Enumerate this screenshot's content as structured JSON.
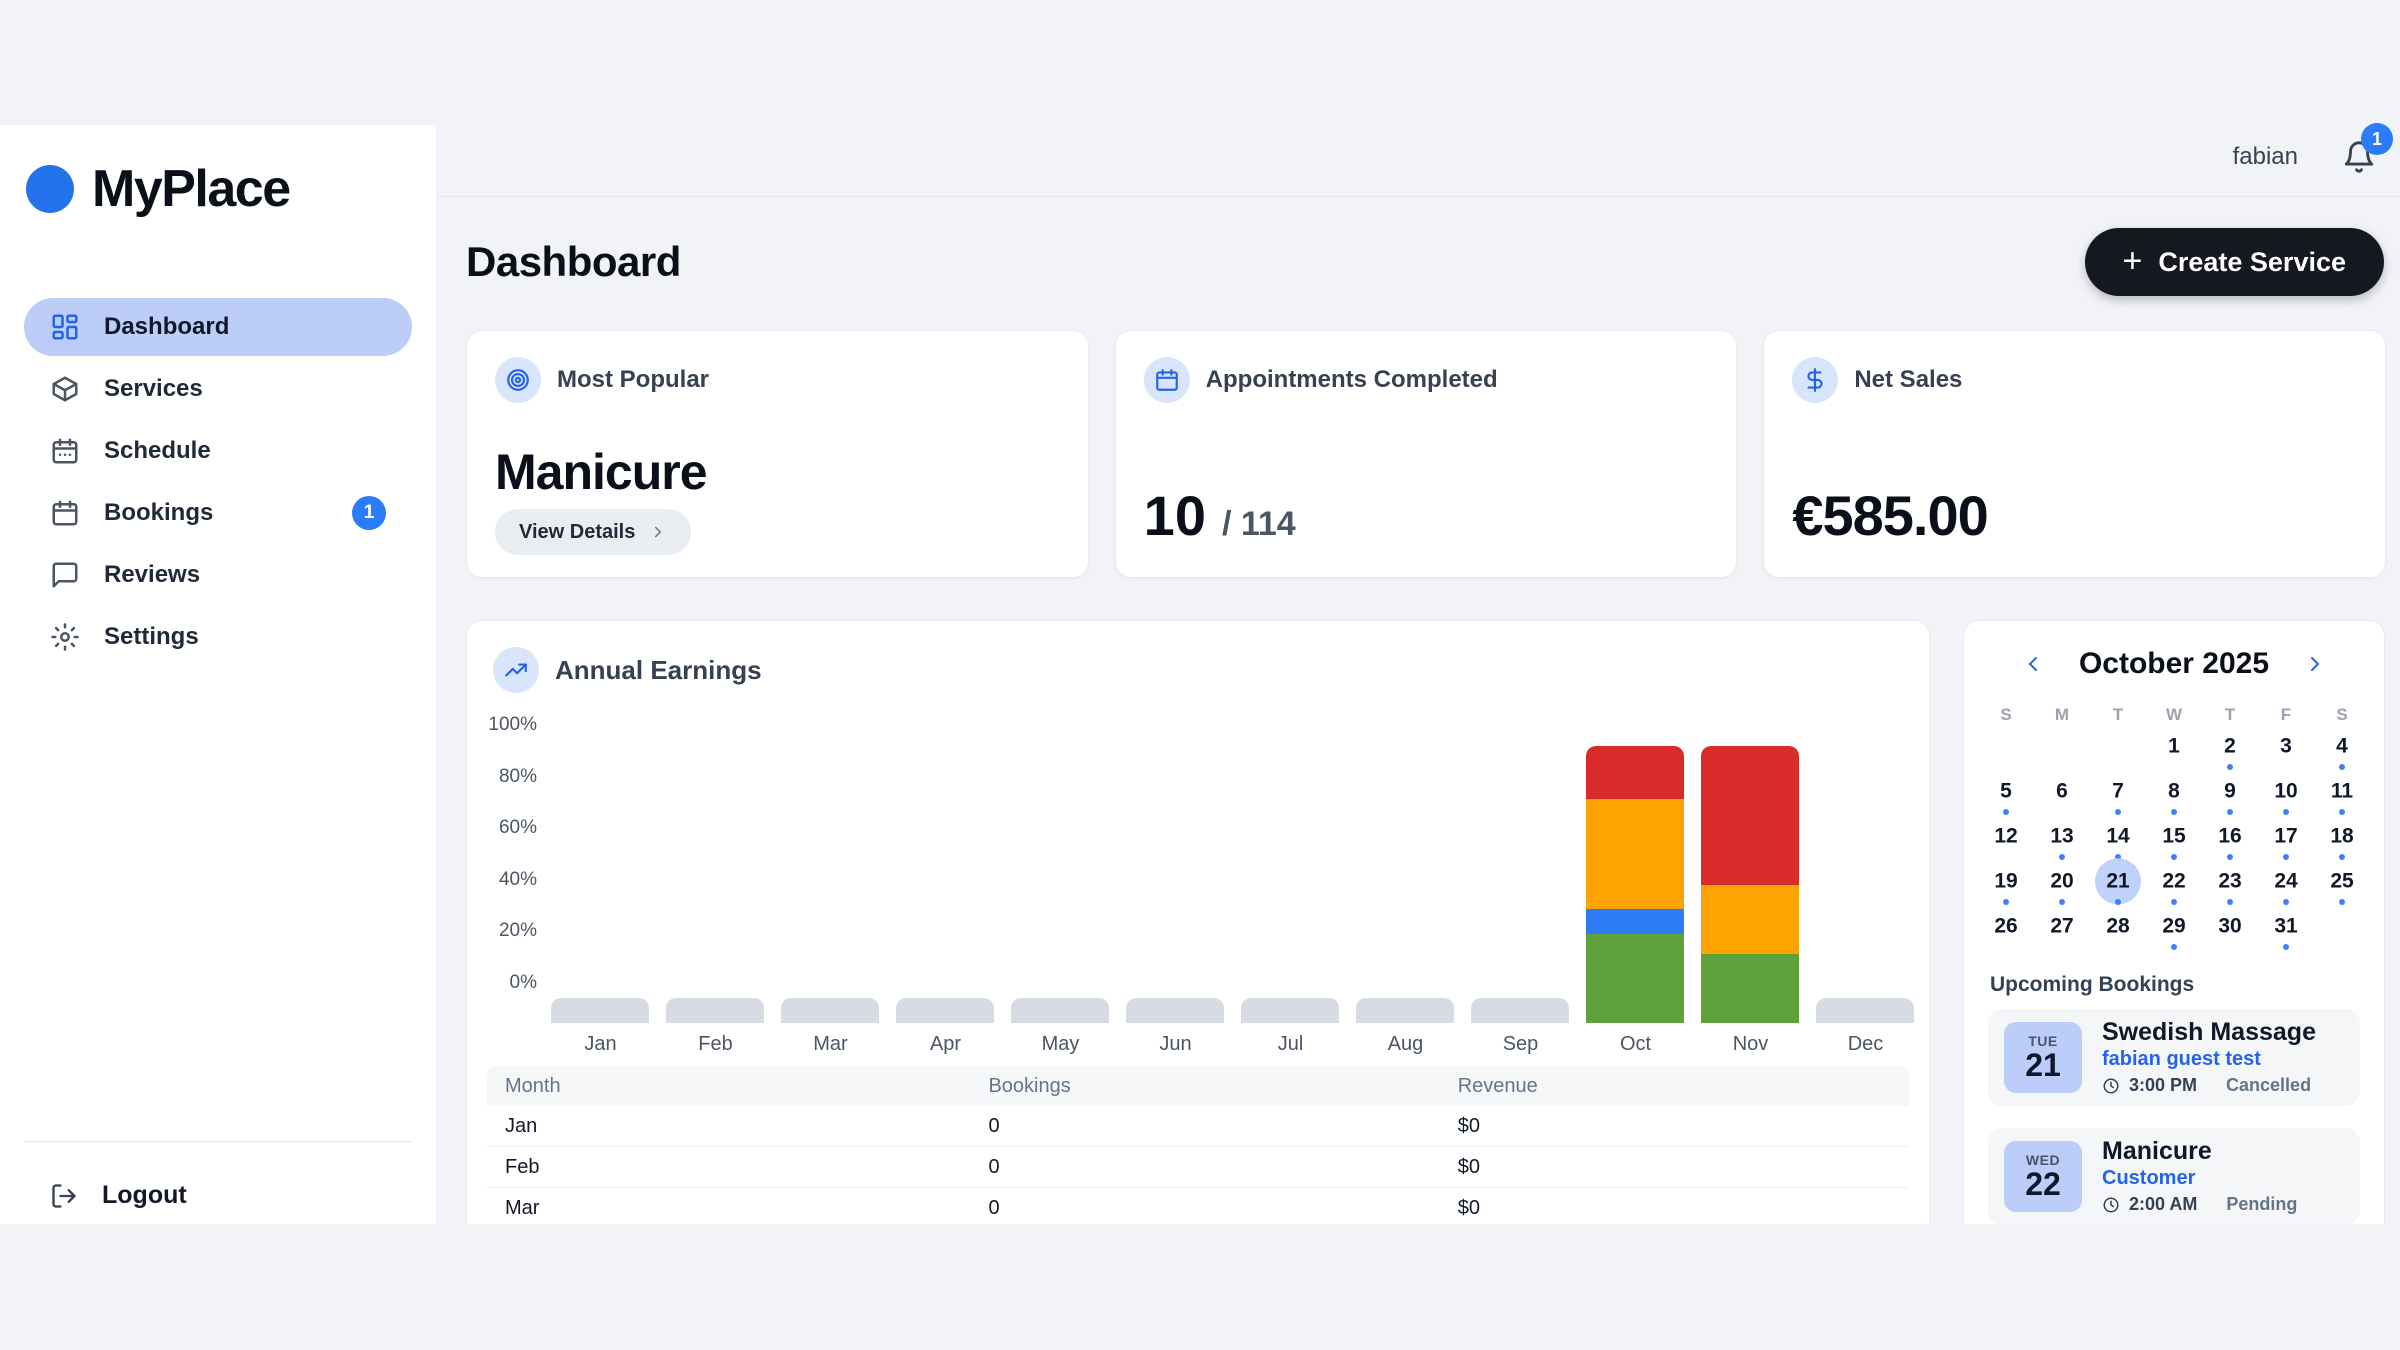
{
  "brand": {
    "name": "MyPlace"
  },
  "topbar": {
    "username": "fabian",
    "notification_count": "1"
  },
  "sidebar": {
    "items": [
      {
        "label": "Dashboard",
        "icon": "dashboard-icon",
        "active": true
      },
      {
        "label": "Services",
        "icon": "services-icon",
        "active": false
      },
      {
        "label": "Schedule",
        "icon": "schedule-icon",
        "active": false
      },
      {
        "label": "Bookings",
        "icon": "bookings-icon",
        "active": false,
        "badge": "1"
      },
      {
        "label": "Reviews",
        "icon": "reviews-icon",
        "active": false
      },
      {
        "label": "Settings",
        "icon": "settings-icon",
        "active": false
      }
    ],
    "logout_label": "Logout"
  },
  "header": {
    "title": "Dashboard",
    "create_button": "Create Service"
  },
  "stats": {
    "most_popular": {
      "label": "Most Popular",
      "icon": "target-icon",
      "value": "Manicure",
      "action": "View Details"
    },
    "appointments": {
      "label": "Appointments Completed",
      "icon": "calendar-icon",
      "completed": "10",
      "total": "/ 114"
    },
    "net_sales": {
      "label": "Net Sales",
      "icon": "dollar-icon",
      "value": "€585.00"
    }
  },
  "chart_data": {
    "type": "bar",
    "stacked": true,
    "title": "Annual Earnings",
    "icon": "trending-up-icon",
    "categories": [
      "Jan",
      "Feb",
      "Mar",
      "Apr",
      "May",
      "Jun",
      "Jul",
      "Aug",
      "Sep",
      "Oct",
      "Nov",
      "Dec"
    ],
    "yticks": [
      "100%",
      "80%",
      "60%",
      "40%",
      "20%",
      "0%"
    ],
    "ylim": [
      0,
      100
    ],
    "grid": false,
    "legend": "none",
    "series": [
      {
        "name": "green",
        "color": "#5fa13a",
        "values": [
          0,
          0,
          0,
          0,
          0,
          0,
          0,
          0,
          0,
          32,
          25,
          0
        ]
      },
      {
        "name": "blue",
        "color": "#2e7cf5",
        "values": [
          0,
          0,
          0,
          0,
          0,
          0,
          0,
          0,
          0,
          9,
          0,
          0
        ]
      },
      {
        "name": "orange",
        "color": "#ffa303",
        "values": [
          0,
          0,
          0,
          0,
          0,
          0,
          0,
          0,
          0,
          40,
          25,
          0
        ]
      },
      {
        "name": "red",
        "color": "#da2b2b",
        "values": [
          0,
          0,
          0,
          0,
          0,
          0,
          0,
          0,
          0,
          19,
          50,
          0
        ]
      }
    ]
  },
  "earnings_table": {
    "headers": [
      "Month",
      "Bookings",
      "Revenue"
    ],
    "rows": [
      [
        "Jan",
        "0",
        "$0"
      ],
      [
        "Feb",
        "0",
        "$0"
      ],
      [
        "Mar",
        "0",
        "$0"
      ]
    ]
  },
  "calendar": {
    "month": "October 2025",
    "weekdays": [
      "S",
      "M",
      "T",
      "W",
      "T",
      "F",
      "S"
    ],
    "leading_blanks": 3,
    "selected_day": 21,
    "days": [
      {
        "d": 1
      },
      {
        "d": 2,
        "dot": true
      },
      {
        "d": 3
      },
      {
        "d": 4,
        "dot": true
      },
      {
        "d": 5,
        "dot": true
      },
      {
        "d": 6
      },
      {
        "d": 7,
        "dot": true
      },
      {
        "d": 8,
        "dot": true
      },
      {
        "d": 9,
        "dot": true
      },
      {
        "d": 10,
        "dot": true
      },
      {
        "d": 11,
        "dot": true
      },
      {
        "d": 12
      },
      {
        "d": 13,
        "dot": true
      },
      {
        "d": 14,
        "dot": true
      },
      {
        "d": 15,
        "dot": true
      },
      {
        "d": 16,
        "dot": true
      },
      {
        "d": 17,
        "dot": true
      },
      {
        "d": 18,
        "dot": true
      },
      {
        "d": 19,
        "dot": true
      },
      {
        "d": 20,
        "dot": true
      },
      {
        "d": 21,
        "dot": true,
        "selected": true
      },
      {
        "d": 22,
        "dot": true
      },
      {
        "d": 23,
        "dot": true
      },
      {
        "d": 24,
        "dot": true
      },
      {
        "d": 25,
        "dot": true
      },
      {
        "d": 26
      },
      {
        "d": 27
      },
      {
        "d": 28
      },
      {
        "d": 29,
        "dot": true
      },
      {
        "d": 30
      },
      {
        "d": 31,
        "dot": true
      }
    ]
  },
  "upcoming": {
    "title": "Upcoming Bookings",
    "bookings": [
      {
        "dow": "TUE",
        "day": "21",
        "title": "Swedish Massage",
        "customer": "fabian guest test",
        "time": "3:00 PM",
        "status": "Cancelled"
      },
      {
        "dow": "WED",
        "day": "22",
        "title": "Manicure",
        "customer": "Customer",
        "time": "2:00 AM",
        "status": "Pending"
      }
    ]
  },
  "colors": {
    "accent_blue": "#2563eb",
    "active_pill": "#bccdf8",
    "badge_blue": "#2b7cf8",
    "button_dark": "#15181f",
    "stub_gray": "#d6dbe4",
    "page_bg": "#f2f3f6"
  }
}
